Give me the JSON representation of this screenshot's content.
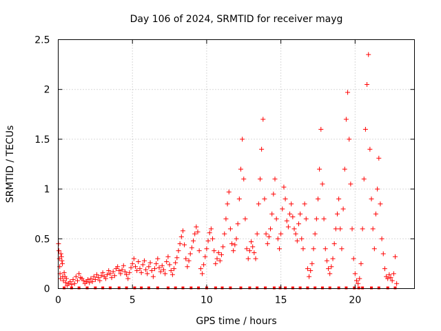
{
  "chart_data": {
    "type": "scatter",
    "title": "Day 106 of 2024, SRMTID for receiver mayg",
    "xlabel": "GPS time / hours",
    "ylabel": "SRMTID / TECUs",
    "xlim": [
      0,
      24
    ],
    "ylim": [
      0,
      2.5
    ],
    "xticks": [
      0,
      5,
      10,
      15,
      20
    ],
    "yticks": [
      0,
      0.5,
      1,
      1.5,
      2,
      2.5
    ],
    "xtick_labels": [
      "0",
      "5",
      "10",
      "15",
      "20"
    ],
    "ytick_labels": [
      "0",
      "0.5",
      "1",
      "1.5",
      "2",
      "2.5"
    ],
    "grid": true,
    "marker": "+",
    "color": "#ff0000",
    "series": [
      {
        "name": "SRMTID",
        "points": [
          [
            0.02,
            0.45
          ],
          [
            0.05,
            0.38
          ],
          [
            0.08,
            0.3
          ],
          [
            0.1,
            0.22
          ],
          [
            0.12,
            0.15
          ],
          [
            0.15,
            0.1
          ],
          [
            0.18,
            0.35
          ],
          [
            0.22,
            0.32
          ],
          [
            0.25,
            0.28
          ],
          [
            0.28,
            0.25
          ],
          [
            0.3,
            0.12
          ],
          [
            0.35,
            0.08
          ],
          [
            0.4,
            0.16
          ],
          [
            0.45,
            0.12
          ],
          [
            0.5,
            0.06
          ],
          [
            0.55,
            0.1
          ],
          [
            0.6,
            0.03
          ],
          [
            0.7,
            0.05
          ],
          [
            0.8,
            0.07
          ],
          [
            0.9,
            0.04
          ],
          [
            1.0,
            0.09
          ],
          [
            1.1,
            0.05
          ],
          [
            1.2,
            0.12
          ],
          [
            1.3,
            0.08
          ],
          [
            1.4,
            0.15
          ],
          [
            1.5,
            0.11
          ],
          [
            1.6,
            0.1
          ],
          [
            1.7,
            0.08
          ],
          [
            1.8,
            0.05
          ],
          [
            1.9,
            0.07
          ],
          [
            2.0,
            0.09
          ],
          [
            2.1,
            0.06
          ],
          [
            2.2,
            0.1
          ],
          [
            2.3,
            0.07
          ],
          [
            2.4,
            0.12
          ],
          [
            2.5,
            0.09
          ],
          [
            2.6,
            0.14
          ],
          [
            2.7,
            0.11
          ],
          [
            2.8,
            0.08
          ],
          [
            2.9,
            0.13
          ],
          [
            3.0,
            0.16
          ],
          [
            3.1,
            0.12
          ],
          [
            3.2,
            0.1
          ],
          [
            3.3,
            0.14
          ],
          [
            3.4,
            0.18
          ],
          [
            3.5,
            0.15
          ],
          [
            3.6,
            0.11
          ],
          [
            3.7,
            0.17
          ],
          [
            3.8,
            0.13
          ],
          [
            3.9,
            0.2
          ],
          [
            4.0,
            0.22
          ],
          [
            4.1,
            0.18
          ],
          [
            4.2,
            0.15
          ],
          [
            4.3,
            0.19
          ],
          [
            4.4,
            0.23
          ],
          [
            4.5,
            0.17
          ],
          [
            4.6,
            0.14
          ],
          [
            4.7,
            0.1
          ],
          [
            4.8,
            0.16
          ],
          [
            4.9,
            0.21
          ],
          [
            5.0,
            0.25
          ],
          [
            5.1,
            0.3
          ],
          [
            5.2,
            0.22
          ],
          [
            5.3,
            0.18
          ],
          [
            5.4,
            0.27
          ],
          [
            5.5,
            0.2
          ],
          [
            5.6,
            0.16
          ],
          [
            5.7,
            0.24
          ],
          [
            5.8,
            0.28
          ],
          [
            5.9,
            0.19
          ],
          [
            6.0,
            0.15
          ],
          [
            6.1,
            0.22
          ],
          [
            6.2,
            0.26
          ],
          [
            6.3,
            0.18
          ],
          [
            6.4,
            0.12
          ],
          [
            6.5,
            0.2
          ],
          [
            6.6,
            0.25
          ],
          [
            6.7,
            0.3
          ],
          [
            6.8,
            0.21
          ],
          [
            6.9,
            0.17
          ],
          [
            7.0,
            0.23
          ],
          [
            7.1,
            0.19
          ],
          [
            7.2,
            0.15
          ],
          [
            7.3,
            0.27
          ],
          [
            7.4,
            0.32
          ],
          [
            7.5,
            0.24
          ],
          [
            7.6,
            0.18
          ],
          [
            7.7,
            0.14
          ],
          [
            7.8,
            0.2
          ],
          [
            7.9,
            0.26
          ],
          [
            8.0,
            0.31
          ],
          [
            8.1,
            0.38
          ],
          [
            8.2,
            0.45
          ],
          [
            8.3,
            0.52
          ],
          [
            8.4,
            0.58
          ],
          [
            8.5,
            0.44
          ],
          [
            8.6,
            0.3
          ],
          [
            8.7,
            0.22
          ],
          [
            8.8,
            0.28
          ],
          [
            8.9,
            0.35
          ],
          [
            9.0,
            0.41
          ],
          [
            9.1,
            0.48
          ],
          [
            9.2,
            0.55
          ],
          [
            9.3,
            0.62
          ],
          [
            9.4,
            0.57
          ],
          [
            9.5,
            0.38
          ],
          [
            9.6,
            0.2
          ],
          [
            9.7,
            0.15
          ],
          [
            9.8,
            0.24
          ],
          [
            9.9,
            0.32
          ],
          [
            10.0,
            0.4
          ],
          [
            10.1,
            0.48
          ],
          [
            10.2,
            0.56
          ],
          [
            10.3,
            0.6
          ],
          [
            10.4,
            0.5
          ],
          [
            10.5,
            0.38
          ],
          [
            10.6,
            0.25
          ],
          [
            10.7,
            0.3
          ],
          [
            10.8,
            0.36
          ],
          [
            10.9,
            0.28
          ],
          [
            11.0,
            0.34
          ],
          [
            11.1,
            0.42
          ],
          [
            11.2,
            0.55
          ],
          [
            11.3,
            0.7
          ],
          [
            11.4,
            0.85
          ],
          [
            11.5,
            0.97
          ],
          [
            11.6,
            0.6
          ],
          [
            11.7,
            0.45
          ],
          [
            11.8,
            0.38
          ],
          [
            11.9,
            0.44
          ],
          [
            12.0,
            0.5
          ],
          [
            12.1,
            0.65
          ],
          [
            12.2,
            0.9
          ],
          [
            12.3,
            1.2
          ],
          [
            12.4,
            1.5
          ],
          [
            12.5,
            1.1
          ],
          [
            12.6,
            0.7
          ],
          [
            12.7,
            0.4
          ],
          [
            12.8,
            0.3
          ],
          [
            12.9,
            0.38
          ],
          [
            13.0,
            0.47
          ],
          [
            13.1,
            0.42
          ],
          [
            13.2,
            0.36
          ],
          [
            13.3,
            0.3
          ],
          [
            13.4,
            0.55
          ],
          [
            13.5,
            0.85
          ],
          [
            13.6,
            1.1
          ],
          [
            13.7,
            1.4
          ],
          [
            13.8,
            1.7
          ],
          [
            13.9,
            0.9
          ],
          [
            14.0,
            0.55
          ],
          [
            14.1,
            0.45
          ],
          [
            14.2,
            0.52
          ],
          [
            14.3,
            0.6
          ],
          [
            14.4,
            0.75
          ],
          [
            14.5,
            0.95
          ],
          [
            14.6,
            1.1
          ],
          [
            14.7,
            0.7
          ],
          [
            14.8,
            0.5
          ],
          [
            14.9,
            0.4
          ],
          [
            15.0,
            0.55
          ],
          [
            15.1,
            0.8
          ],
          [
            15.2,
            1.02
          ],
          [
            15.3,
            0.9
          ],
          [
            15.4,
            0.68
          ],
          [
            15.5,
            0.62
          ],
          [
            15.6,
            0.75
          ],
          [
            15.7,
            0.85
          ],
          [
            15.8,
            0.72
          ],
          [
            15.9,
            0.6
          ],
          [
            16.0,
            0.55
          ],
          [
            16.1,
            0.48
          ],
          [
            16.2,
            0.65
          ],
          [
            16.3,
            0.75
          ],
          [
            16.4,
            0.5
          ],
          [
            16.5,
            0.4
          ],
          [
            16.6,
            0.85
          ],
          [
            16.7,
            0.7
          ],
          [
            16.8,
            0.2
          ],
          [
            16.9,
            0.12
          ],
          [
            17.0,
            0.18
          ],
          [
            17.1,
            0.25
          ],
          [
            17.2,
            0.4
          ],
          [
            17.3,
            0.55
          ],
          [
            17.4,
            0.7
          ],
          [
            17.5,
            0.9
          ],
          [
            17.6,
            1.2
          ],
          [
            17.7,
            1.6
          ],
          [
            17.8,
            1.05
          ],
          [
            17.9,
            0.7
          ],
          [
            18.0,
            0.4
          ],
          [
            18.1,
            0.28
          ],
          [
            18.2,
            0.2
          ],
          [
            18.3,
            0.15
          ],
          [
            18.4,
            0.22
          ],
          [
            18.5,
            0.3
          ],
          [
            18.6,
            0.45
          ],
          [
            18.7,
            0.6
          ],
          [
            18.8,
            0.75
          ],
          [
            18.9,
            0.9
          ],
          [
            19.0,
            0.6
          ],
          [
            19.1,
            0.4
          ],
          [
            19.2,
            0.8
          ],
          [
            19.3,
            1.2
          ],
          [
            19.4,
            1.7
          ],
          [
            19.5,
            1.97
          ],
          [
            19.6,
            1.5
          ],
          [
            19.7,
            1.05
          ],
          [
            19.8,
            0.6
          ],
          [
            19.9,
            0.3
          ],
          [
            20.0,
            0.15
          ],
          [
            20.1,
            0.08
          ],
          [
            20.2,
            0.05
          ],
          [
            20.3,
            0.1
          ],
          [
            20.4,
            0.25
          ],
          [
            20.5,
            0.6
          ],
          [
            20.6,
            1.1
          ],
          [
            20.7,
            1.6
          ],
          [
            20.8,
            2.05
          ],
          [
            20.9,
            2.35
          ],
          [
            21.0,
            1.4
          ],
          [
            21.1,
            0.9
          ],
          [
            21.2,
            0.6
          ],
          [
            21.3,
            0.4
          ],
          [
            21.4,
            0.75
          ],
          [
            21.5,
            1.0
          ],
          [
            21.6,
            1.31
          ],
          [
            21.7,
            0.85
          ],
          [
            21.8,
            0.5
          ],
          [
            21.9,
            0.35
          ],
          [
            22.0,
            0.2
          ],
          [
            22.1,
            0.12
          ],
          [
            22.2,
            0.1
          ],
          [
            22.3,
            0.14
          ],
          [
            22.4,
            0.11
          ],
          [
            22.5,
            0.08
          ],
          [
            22.6,
            0.15
          ],
          [
            22.7,
            0.32
          ],
          [
            22.8,
            0.05
          ]
        ]
      }
    ],
    "baseline_markers": [
      0.4,
      0.9,
      1.4,
      1.95,
      2.5,
      3.0,
      3.5,
      4.1,
      4.6,
      5.15,
      5.6,
      6.1,
      6.7,
      7.4,
      7.9,
      8.4,
      8.95,
      9.45,
      10.0,
      10.6,
      11.05,
      11.6,
      12.3,
      12.9,
      13.4,
      13.95,
      14.55,
      14.95,
      15.3,
      15.8,
      16.3,
      16.8,
      17.3,
      17.8,
      18.3,
      18.9,
      19.4,
      19.95,
      20.25,
      20.5,
      21.1,
      21.6,
      22.2,
      22.7
    ]
  }
}
